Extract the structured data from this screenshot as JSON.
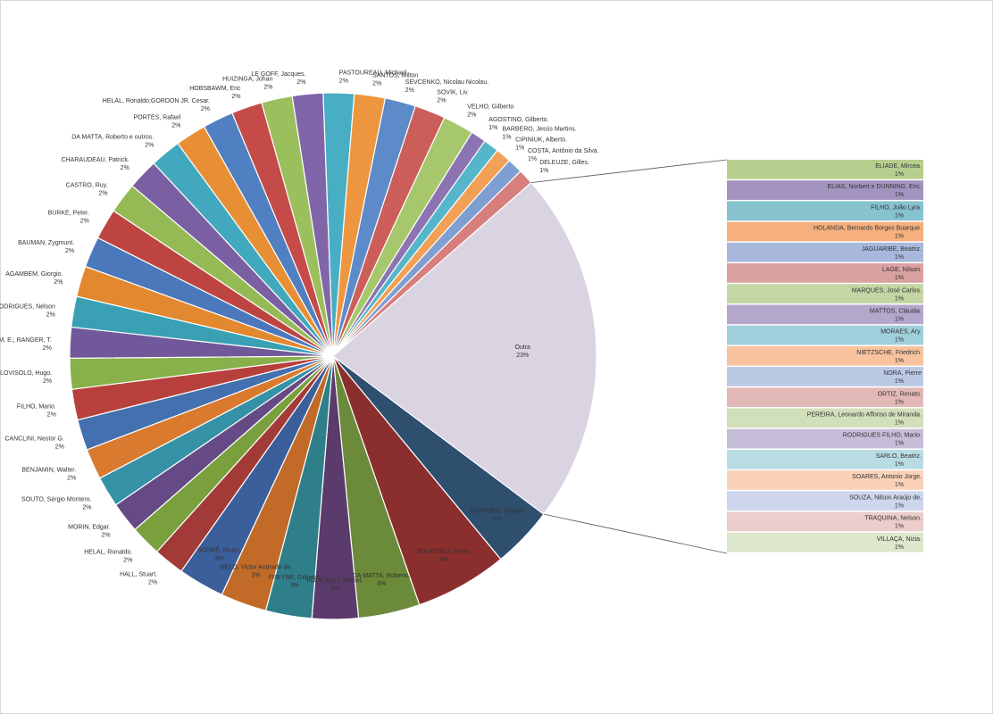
{
  "chart_data": {
    "type": "bar-of-pie",
    "title": "",
    "main_slices": [
      {
        "label": "BARTHES, Roland",
        "pct": "4%",
        "value": 4,
        "color": "#2f4f6f"
      },
      {
        "label": "BOURDIEU, Pierre.",
        "pct": "6%",
        "value": 6,
        "color": "#8b2e2e"
      },
      {
        "label": "DA MATTA, Roberto.",
        "pct": "4%",
        "value": 4,
        "color": "#6b8a3a"
      },
      {
        "label": "FOUCAULT, Michel.",
        "pct": "3%",
        "value": 3,
        "color": "#5a3b6b"
      },
      {
        "label": "FREYRE, Gilberto.",
        "pct": "3%",
        "value": 3,
        "color": "#2f7f8a"
      },
      {
        "label": "MELO, Victor Andrade de.",
        "pct": "3%",
        "value": 3,
        "color": "#c26a28"
      },
      {
        "label": "SODRÉ, Muniz.",
        "pct": "3%",
        "value": 3,
        "color": "#3b5f9a"
      },
      {
        "label": "HALL, Stuart.",
        "pct": "2%",
        "value": 2,
        "color": "#a23a38"
      },
      {
        "label": "HELAL, Ronaldo.",
        "pct": "2%",
        "value": 2,
        "color": "#7aa03e"
      },
      {
        "label": "MORIN, Edgar.",
        "pct": "2%",
        "value": 2,
        "color": "#664a86"
      },
      {
        "label": "SOUTO, Sérgio Montero.",
        "pct": "2%",
        "value": 2,
        "color": "#3592a6"
      },
      {
        "label": "BENJAMIN, Walter.",
        "pct": "2%",
        "value": 2,
        "color": "#d97a2e"
      },
      {
        "label": "CANCLINI, Nestor G.",
        "pct": "2%",
        "value": 2,
        "color": "#4470b0"
      },
      {
        "label": "FILHO, Mario.",
        "pct": "2%",
        "value": 2,
        "color": "#b8403c"
      },
      {
        "label": "HELAL, Ronaldo; SOARES, Antonio Jorge; LOVISOLO, Hugo.",
        "pct": "2%",
        "value": 2,
        "color": "#88b04b"
      },
      {
        "label": "HOBSBAWM, E.; RANGER, T.",
        "pct": "2%",
        "value": 2,
        "color": "#71589a"
      },
      {
        "label": "RODRIGUES, Nelson",
        "pct": "2%",
        "value": 2,
        "color": "#3aa0b4"
      },
      {
        "label": "AGAMBEM, Giorgio.",
        "pct": "2%",
        "value": 2,
        "color": "#e2882f"
      },
      {
        "label": "BAUMAN, Zygmunt.",
        "pct": "2%",
        "value": 2,
        "color": "#4a78bb"
      },
      {
        "label": "BURKE, Peter.",
        "pct": "2%",
        "value": 2,
        "color": "#be4441"
      },
      {
        "label": "CASTRO, Ruy.",
        "pct": "2%",
        "value": 2,
        "color": "#95ba55"
      },
      {
        "label": "CHARAUDEAU, Patrick.",
        "pct": "2%",
        "value": 2,
        "color": "#7a60a3"
      },
      {
        "label": "DA MATTA, Roberto e outros.",
        "pct": "2%",
        "value": 2,
        "color": "#42a8bd"
      },
      {
        "label": "PORTES, Rafael",
        "pct": "2%",
        "value": 2,
        "color": "#e88f36"
      },
      {
        "label": "HELAL, Ronaldo;GORDON JR. Cesar.",
        "pct": "2%",
        "value": 2,
        "color": "#507fc2"
      },
      {
        "label": "HOBSBAWM, Eric",
        "pct": "2%",
        "value": 2,
        "color": "#c44b47"
      },
      {
        "label": "HUIZINGA, Johan",
        "pct": "2%",
        "value": 2,
        "color": "#9bbf5c"
      },
      {
        "label": "LE GOFF, Jacques.",
        "pct": "2%",
        "value": 2,
        "color": "#8066a9"
      },
      {
        "label": "PASTOUREAU, Michael.",
        "pct": "2%",
        "value": 2,
        "color": "#48aec3"
      },
      {
        "label": "SANTOS, Milton",
        "pct": "2%",
        "value": 2,
        "color": "#ee963f"
      },
      {
        "label": "SEVCENKO, Nicolau Nicolau.",
        "pct": "2%",
        "value": 2,
        "color": "#5d8ac9"
      },
      {
        "label": "SOVIK, Liv.",
        "pct": "2%",
        "value": 2,
        "color": "#cc5e5a"
      },
      {
        "label": "VELHO, Gilberto",
        "pct": "2%",
        "value": 2,
        "color": "#a6c76b"
      },
      {
        "label": "AGOSTINO, Gilberto.",
        "pct": "1%",
        "value": 1,
        "color": "#8c74b2"
      },
      {
        "label": "BARBERO, Jesús Martins.",
        "pct": "1%",
        "value": 1,
        "color": "#55b6ca"
      },
      {
        "label": "CIPINIUK, Alberto.",
        "pct": "1%",
        "value": 1,
        "color": "#f2a055"
      },
      {
        "label": "COSTA, Antônio da Silva.",
        "pct": "1%",
        "value": 1,
        "color": "#7f9fd2"
      },
      {
        "label": "DELEUZE, Gilles.",
        "pct": "1%",
        "value": 1,
        "color": "#d67f7c"
      },
      {
        "label": "Outra",
        "pct": "23%",
        "value": 23,
        "color": "#d9d3e2"
      }
    ],
    "bar_items": [
      {
        "label": "ELIADE, Mircea.",
        "pct": "1%",
        "color": "#b6cf8f"
      },
      {
        "label": "ELIAS, Norbert e DUNNING, Eric.",
        "pct": "1%",
        "color": "#a294bf"
      },
      {
        "label": "FILHO, João Lyra.",
        "pct": "1%",
        "color": "#87c2cf"
      },
      {
        "label": "HOLANDA, Bernardo Borges Buarque.",
        "pct": "1%",
        "color": "#f5b07e"
      },
      {
        "label": "JAGUARIBE, Beatriz.",
        "pct": "1%",
        "color": "#a7b8dc"
      },
      {
        "label": "LAGE, Nilson.",
        "pct": "1%",
        "color": "#d9a1a0"
      },
      {
        "label": "MARQUES, José Carlos.",
        "pct": "1%",
        "color": "#c4d6a3"
      },
      {
        "label": "MATTOS, Cláudia.",
        "pct": "1%",
        "color": "#b3a7cb"
      },
      {
        "label": "MORAES, Ary.",
        "pct": "1%",
        "color": "#9fcfda"
      },
      {
        "label": "NIETZSCHE, Friedrich.",
        "pct": "1%",
        "color": "#f8c39e"
      },
      {
        "label": "NORA, Pierre",
        "pct": "1%",
        "color": "#bcc9e5"
      },
      {
        "label": "ORTIZ, Renato.",
        "pct": "1%",
        "color": "#e3b9b8"
      },
      {
        "label": "PEREIRA, Leonardo Affonso de Miranda.",
        "pct": "1%",
        "color": "#d2dfbb"
      },
      {
        "label": "RODRIGUES FILHO, Mario.",
        "pct": "1%",
        "color": "#c6bdd9"
      },
      {
        "label": "SARLO, Beatriz.",
        "pct": "1%",
        "color": "#b9dce4"
      },
      {
        "label": "SOARES, Antonio Jorge.",
        "pct": "1%",
        "color": "#f9d2b8"
      },
      {
        "label": "SOUZA, Nilson Araújo de.",
        "pct": "1%",
        "color": "#cdd6ec"
      },
      {
        "label": "TRAQUINA, Nelson.",
        "pct": "1%",
        "color": "#ebcdcc"
      },
      {
        "label": "VILLAÇA, Nizia.",
        "pct": "1%",
        "color": "#dde7cc"
      }
    ]
  }
}
